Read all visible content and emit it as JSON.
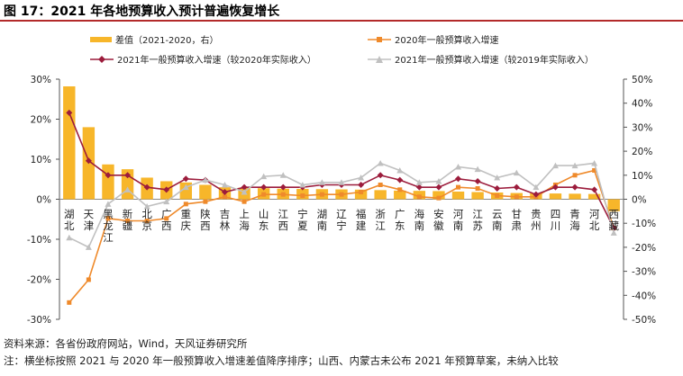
{
  "figure": {
    "title": "图 17：2021 年各地预算收入预计普遍恢复增长",
    "source": "资料来源：各省份政府网站，Wind，天风证券研究所",
    "note": "注：横坐标按照 2021 与 2020 年一般预算收入增速差值降序排序；山西、内蒙古未公布 2021 年预算草案，未纳入比较"
  },
  "chart_data": {
    "type": "bar+line",
    "categories": [
      "湖北",
      "天津",
      "黑龙江",
      "新疆",
      "北京",
      "广西",
      "重庆",
      "陕西",
      "吉林",
      "上海",
      "山东",
      "江西",
      "宁夏",
      "湖南",
      "辽宁",
      "福建",
      "浙江",
      "广东",
      "海南",
      "安徽",
      "河南",
      "江苏",
      "云南",
      "甘肃",
      "贵州",
      "四川",
      "青海",
      "河北",
      "西藏"
    ],
    "left_axis": {
      "min": -30,
      "max": 30,
      "ticks": [
        "30%",
        "20%",
        "10%",
        "0%",
        "-10%",
        "-20%",
        "-30%"
      ]
    },
    "right_axis": {
      "min": -50,
      "max": 50,
      "ticks": [
        "50%",
        "40%",
        "30%",
        "20%",
        "10%",
        "0%",
        "-10%",
        "-20%",
        "-30%",
        "-40%",
        "-50%"
      ]
    },
    "series": [
      {
        "name": "差值（2021-2020，右）",
        "type": "bar",
        "axis": "right",
        "color": "#f7b62a",
        "values": [
          47,
          30,
          14.5,
          12.5,
          9,
          7.5,
          7,
          6,
          5,
          4.8,
          4.6,
          4.4,
          4.3,
          4.2,
          4.1,
          4.0,
          3.8,
          3.6,
          3.5,
          3.4,
          3.2,
          3.0,
          2.8,
          2.6,
          2.5,
          2.4,
          2.3,
          2.2,
          -5
        ]
      },
      {
        "name": "2020年一般预算收入增速",
        "type": "line",
        "axis": "right",
        "color": "#ef8a2b",
        "marker": "square",
        "values": [
          -43,
          -33.5,
          -8,
          -9,
          -9,
          -8,
          -2,
          -1,
          1,
          -1,
          2,
          2,
          1.5,
          2,
          2,
          3,
          6,
          4,
          1,
          0.5,
          5,
          4.5,
          1.5,
          1,
          1,
          6,
          10,
          12,
          -12
        ]
      },
      {
        "name": "2021年一般预算收入增速（较2020年实际收入）",
        "type": "line",
        "axis": "right",
        "color": "#9c1c3c",
        "marker": "diamond",
        "values": [
          36,
          16,
          10,
          10,
          5,
          4,
          8.5,
          8,
          3,
          5,
          5,
          5,
          5,
          6,
          6,
          6,
          10,
          8,
          5,
          5,
          8.5,
          7.5,
          4.5,
          5,
          2,
          5,
          5,
          4,
          -12
        ]
      },
      {
        "name": "2021年一般预算收入增速（较2019年实际收入）",
        "type": "line",
        "axis": "right",
        "color": "#c0c0c0",
        "marker": "triangle",
        "values": [
          -16,
          -20,
          -2,
          4,
          -3,
          -1,
          5,
          8,
          6,
          3,
          9.5,
          10,
          6,
          7,
          7,
          9,
          15,
          12,
          7,
          7.5,
          13.5,
          12.5,
          9,
          11,
          5,
          14,
          14,
          15,
          -14
        ]
      }
    ]
  }
}
